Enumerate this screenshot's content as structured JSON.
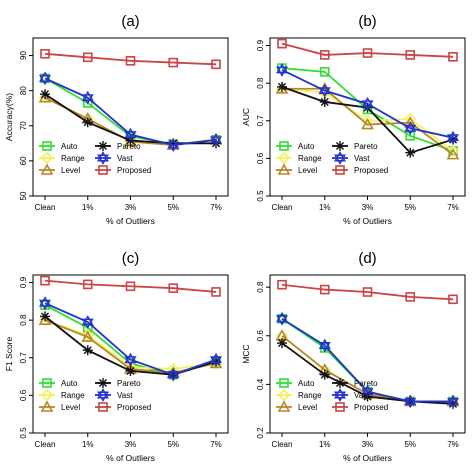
{
  "chart_data": [
    {
      "panel": "(a)",
      "type": "line",
      "categories": [
        "Clean",
        "1%",
        "3%",
        "5%",
        "7%"
      ],
      "xlabel": "% of Outliers",
      "ylabel": "Accuracy(%)",
      "ylim": [
        50,
        95
      ],
      "yticks": [
        "50",
        "60",
        "70",
        "80",
        "90"
      ],
      "grid": false,
      "legend_position": "bottom-left",
      "series": [
        {
          "name": "Auto",
          "values": [
            83.5,
            76.5,
            67.0,
            64.8,
            66.0
          ]
        },
        {
          "name": "Range",
          "values": [
            78.0,
            72.0,
            65.5,
            64.8,
            66.0
          ]
        },
        {
          "name": "Level",
          "values": [
            78.0,
            72.0,
            65.5,
            64.5,
            66.0
          ]
        },
        {
          "name": "Pareto",
          "values": [
            79.0,
            71.0,
            65.8,
            65.0,
            65.0
          ]
        },
        {
          "name": "Vast",
          "values": [
            83.5,
            78.0,
            67.5,
            64.5,
            66.0
          ]
        },
        {
          "name": "Proposed",
          "values": [
            90.5,
            89.5,
            88.5,
            88.0,
            87.5
          ]
        }
      ]
    },
    {
      "panel": "(b)",
      "type": "line",
      "categories": [
        "Clean",
        "1%",
        "3%",
        "5%",
        "7%"
      ],
      "xlabel": "% of Outliers",
      "ylabel": "AUC",
      "ylim": [
        0.5,
        0.92
      ],
      "yticks": [
        "0.5",
        "0.6",
        "0.7",
        "0.8",
        "0.9"
      ],
      "grid": false,
      "legend_position": "bottom-left",
      "series": [
        {
          "name": "Auto",
          "values": [
            0.84,
            0.83,
            0.73,
            0.66,
            0.62
          ]
        },
        {
          "name": "Range",
          "values": [
            0.785,
            0.775,
            0.7,
            0.705,
            0.62
          ]
        },
        {
          "name": "Level",
          "values": [
            0.785,
            0.785,
            0.69,
            0.695,
            0.61
          ]
        },
        {
          "name": "Pareto",
          "values": [
            0.79,
            0.75,
            0.735,
            0.615,
            0.65
          ]
        },
        {
          "name": "Vast",
          "values": [
            0.835,
            0.78,
            0.745,
            0.68,
            0.655
          ]
        },
        {
          "name": "Proposed",
          "values": [
            0.905,
            0.875,
            0.88,
            0.875,
            0.87
          ]
        }
      ]
    },
    {
      "panel": "(c)",
      "type": "line",
      "categories": [
        "Clean",
        "1%",
        "3%",
        "5%",
        "7%"
      ],
      "xlabel": "% of Outliers",
      "ylabel": "F1 Score",
      "ylim": [
        0.5,
        0.92
      ],
      "yticks": [
        "0.5",
        "0.6",
        "0.7",
        "0.8",
        "0.9"
      ],
      "grid": false,
      "legend_position": "bottom-left",
      "series": [
        {
          "name": "Auto",
          "values": [
            0.84,
            0.78,
            0.685,
            0.655,
            0.69
          ]
        },
        {
          "name": "Range",
          "values": [
            0.8,
            0.76,
            0.675,
            0.67,
            0.685
          ]
        },
        {
          "name": "Level",
          "values": [
            0.8,
            0.755,
            0.67,
            0.66,
            0.685
          ]
        },
        {
          "name": "Pareto",
          "values": [
            0.81,
            0.72,
            0.665,
            0.655,
            0.69
          ]
        },
        {
          "name": "Vast",
          "values": [
            0.845,
            0.795,
            0.695,
            0.655,
            0.695
          ]
        },
        {
          "name": "Proposed",
          "values": [
            0.905,
            0.895,
            0.89,
            0.885,
            0.875
          ]
        }
      ]
    },
    {
      "panel": "(d)",
      "type": "line",
      "categories": [
        "Clean",
        "1%",
        "3%",
        "5%",
        "7%"
      ],
      "xlabel": "% of Outliers",
      "ylabel": "MCC",
      "ylim": [
        0.2,
        0.85
      ],
      "yticks": [
        "0.2",
        "0.4",
        "0.6",
        "0.8"
      ],
      "grid": false,
      "legend_position": "bottom-left",
      "series": [
        {
          "name": "Auto",
          "values": [
            0.67,
            0.55,
            0.37,
            0.33,
            0.33
          ]
        },
        {
          "name": "Range",
          "values": [
            0.6,
            0.46,
            0.36,
            0.33,
            0.33
          ]
        },
        {
          "name": "Level",
          "values": [
            0.6,
            0.46,
            0.36,
            0.33,
            0.33
          ]
        },
        {
          "name": "Pareto",
          "values": [
            0.57,
            0.44,
            0.35,
            0.33,
            0.32
          ]
        },
        {
          "name": "Vast",
          "values": [
            0.67,
            0.56,
            0.37,
            0.33,
            0.33
          ]
        },
        {
          "name": "Proposed",
          "values": [
            0.81,
            0.79,
            0.78,
            0.76,
            0.75
          ]
        }
      ]
    }
  ],
  "style": {
    "series": {
      "Auto": {
        "color": "#33dd33",
        "marker": "square"
      },
      "Range": {
        "color": "#f2f25a",
        "marker": "diamond"
      },
      "Level": {
        "color": "#b8862b",
        "marker": "triangle"
      },
      "Pareto": {
        "color": "#111111",
        "marker": "asterisk"
      },
      "Vast": {
        "color": "#2233cc",
        "marker": "star"
      },
      "Proposed": {
        "color": "#cc4444",
        "marker": "square"
      }
    },
    "legend_order": [
      "Auto",
      "Pareto",
      "Range",
      "Vast",
      "Level",
      "Proposed"
    ]
  }
}
